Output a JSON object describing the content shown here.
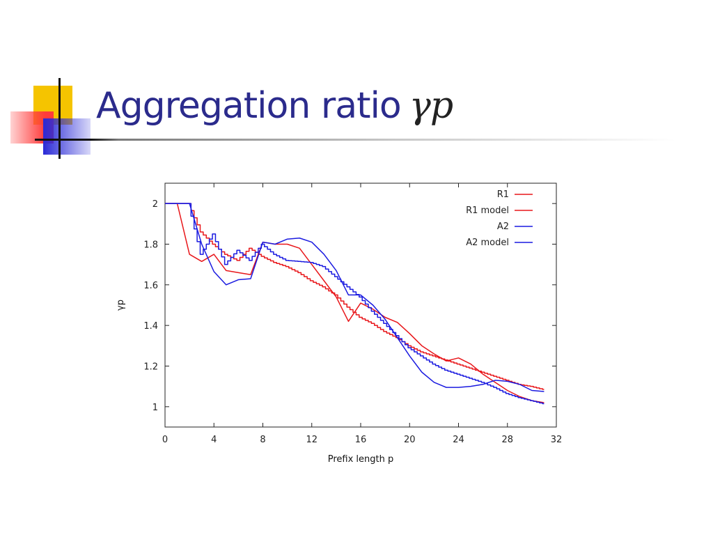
{
  "slide": {
    "title_text": "Aggregation ratio",
    "title_symbol": "γp"
  },
  "colors": {
    "title": "#2b2b8c",
    "red": "#e8161a",
    "blue": "#1a1ae0"
  },
  "chart_data": {
    "type": "line",
    "title": "",
    "xlabel": "Prefix length p",
    "ylabel": "γp",
    "xlim": [
      0,
      32
    ],
    "ylim": [
      0.9,
      2.1
    ],
    "xticks": [
      0,
      4,
      8,
      12,
      16,
      20,
      24,
      28,
      32
    ],
    "yticks": [
      1,
      1.2,
      1.4,
      1.6,
      1.8,
      2
    ],
    "ytick_labels": [
      "1",
      "1.2",
      "1.4",
      "1.6",
      "1.8",
      "2"
    ],
    "legend_position": "top-right",
    "series": [
      {
        "name": "R1",
        "color": "#e8161a",
        "step": false,
        "x": [
          0,
          1,
          2,
          3,
          4,
          5,
          6,
          7,
          8,
          9,
          10,
          11,
          12,
          13,
          14,
          15,
          16,
          17,
          18,
          19,
          20,
          21,
          22,
          23,
          24,
          25,
          26,
          27,
          28,
          29,
          30,
          31
        ],
        "y": [
          2.0,
          2.0,
          1.75,
          1.715,
          1.75,
          1.67,
          1.66,
          1.65,
          1.81,
          1.8,
          1.8,
          1.78,
          1.7,
          1.62,
          1.54,
          1.42,
          1.51,
          1.48,
          1.44,
          1.415,
          1.36,
          1.3,
          1.26,
          1.225,
          1.24,
          1.21,
          1.16,
          1.12,
          1.08,
          1.05,
          1.03,
          1.02
        ]
      },
      {
        "name": "R1 model",
        "color": "#e8161a",
        "step": true,
        "x": [
          0,
          1,
          2,
          3,
          4,
          5,
          6,
          7,
          8,
          9,
          10,
          11,
          12,
          13,
          14,
          15,
          16,
          17,
          18,
          19,
          20,
          21,
          22,
          23,
          24,
          25,
          26,
          27,
          28,
          29,
          30,
          31
        ],
        "y": [
          2.0,
          2.0,
          2.0,
          1.86,
          1.8,
          1.75,
          1.72,
          1.78,
          1.74,
          1.71,
          1.69,
          1.66,
          1.62,
          1.59,
          1.55,
          1.49,
          1.44,
          1.41,
          1.37,
          1.34,
          1.3,
          1.27,
          1.25,
          1.23,
          1.21,
          1.19,
          1.17,
          1.15,
          1.13,
          1.11,
          1.1,
          1.085
        ]
      },
      {
        "name": "A2",
        "color": "#1a1ae0",
        "step": false,
        "x": [
          0,
          1,
          2,
          3,
          4,
          5,
          6,
          7,
          8,
          9,
          10,
          11,
          12,
          13,
          14,
          15,
          16,
          17,
          18,
          19,
          20,
          21,
          22,
          23,
          24,
          25,
          26,
          27,
          28,
          29,
          30,
          31
        ],
        "y": [
          2.0,
          2.0,
          2.0,
          1.8,
          1.665,
          1.6,
          1.625,
          1.63,
          1.81,
          1.8,
          1.825,
          1.83,
          1.81,
          1.75,
          1.67,
          1.55,
          1.55,
          1.5,
          1.43,
          1.34,
          1.25,
          1.17,
          1.12,
          1.095,
          1.095,
          1.1,
          1.11,
          1.13,
          1.125,
          1.11,
          1.08,
          1.075
        ]
      },
      {
        "name": "A2 model",
        "color": "#1a1ae0",
        "step": true,
        "x": [
          0,
          1,
          2,
          3,
          4,
          5,
          6,
          7,
          8,
          9,
          10,
          11,
          12,
          13,
          14,
          15,
          16,
          17,
          18,
          19,
          20,
          21,
          22,
          23,
          24,
          25,
          26,
          27,
          28,
          29,
          30,
          31
        ],
        "y": [
          2.0,
          2.0,
          2.0,
          1.75,
          1.85,
          1.7,
          1.77,
          1.72,
          1.8,
          1.75,
          1.72,
          1.715,
          1.71,
          1.69,
          1.64,
          1.59,
          1.54,
          1.47,
          1.41,
          1.35,
          1.29,
          1.25,
          1.21,
          1.18,
          1.16,
          1.14,
          1.12,
          1.095,
          1.065,
          1.045,
          1.03,
          1.015
        ]
      }
    ]
  }
}
